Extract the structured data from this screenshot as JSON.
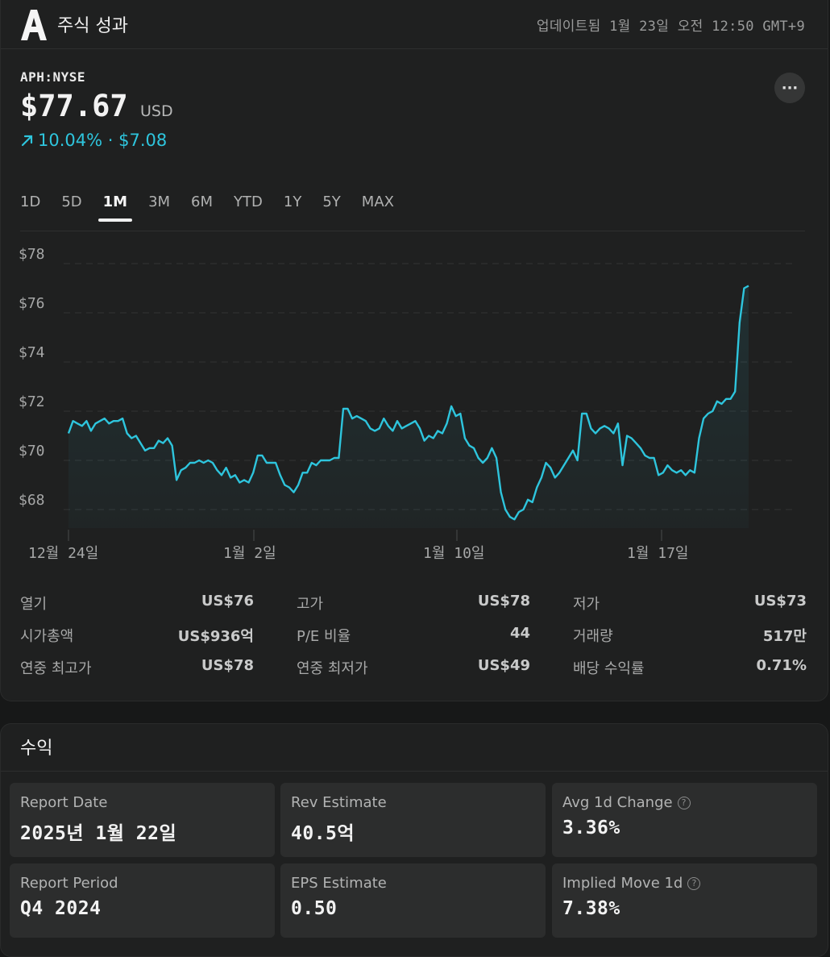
{
  "header": {
    "title": "주식 성과",
    "updated": "업데이트됨 1월 23일 오전 12:50 GMT+9"
  },
  "quote": {
    "ticker": "APH:NYSE",
    "price": "$77.67",
    "currency": "USD",
    "change": "10.04% · $7.08",
    "more": "···"
  },
  "ranges": [
    "1D",
    "5D",
    "1M",
    "3M",
    "6M",
    "YTD",
    "1Y",
    "5Y",
    "MAX"
  ],
  "selected_range": "1M",
  "chart_data": {
    "type": "area",
    "y_ticks": [
      "$78",
      "$76",
      "$74",
      "$72",
      "$70",
      "$68"
    ],
    "ylim": [
      67,
      78.5
    ],
    "x_ticks": [
      "12월 24일",
      "1월 2일",
      "1월 10일",
      "1월 17일"
    ],
    "line_color": "#2ec5dd",
    "grid": "dashed horizontal",
    "values": [
      71.1,
      71.6,
      71.5,
      71.4,
      71.6,
      71.2,
      71.5,
      71.6,
      71.7,
      71.5,
      71.6,
      71.6,
      71.7,
      71.1,
      70.9,
      71.0,
      70.7,
      70.4,
      70.5,
      70.5,
      70.8,
      70.7,
      70.9,
      70.6,
      69.2,
      69.6,
      69.7,
      69.9,
      69.9,
      70.0,
      69.9,
      70.0,
      69.9,
      69.6,
      69.4,
      69.7,
      69.3,
      69.4,
      69.1,
      69.2,
      69.1,
      69.5,
      70.2,
      70.2,
      69.9,
      69.9,
      69.9,
      69.4,
      69.0,
      68.9,
      68.7,
      69.0,
      69.5,
      69.5,
      69.9,
      69.8,
      70.0,
      70.0,
      70.0,
      70.1,
      70.1,
      72.1,
      72.1,
      71.7,
      71.8,
      71.7,
      71.6,
      71.3,
      71.2,
      71.3,
      71.7,
      71.4,
      71.2,
      71.6,
      71.3,
      71.4,
      71.5,
      71.6,
      71.3,
      70.8,
      71.0,
      70.9,
      71.2,
      71.1,
      71.5,
      72.2,
      71.8,
      71.9,
      70.9,
      70.6,
      70.5,
      70.1,
      69.9,
      70.1,
      70.5,
      70.1,
      68.7,
      68.0,
      67.7,
      67.6,
      67.9,
      68.0,
      68.4,
      68.3,
      68.9,
      69.3,
      69.9,
      69.7,
      69.3,
      69.5,
      69.8,
      70.1,
      70.4,
      70.0,
      71.9,
      71.9,
      71.3,
      71.1,
      71.3,
      71.4,
      71.3,
      71.1,
      71.5,
      69.8,
      71.0,
      70.9,
      70.7,
      70.5,
      70.2,
      70.1,
      70.1,
      69.4,
      69.5,
      69.8,
      69.6,
      69.5,
      69.6,
      69.4,
      69.6,
      69.5,
      70.9,
      71.7,
      71.9,
      72.0,
      72.4,
      72.3,
      72.5,
      72.5,
      72.8,
      75.6,
      77.0,
      77.1
    ]
  },
  "stats": [
    {
      "label": "열기",
      "value": "US$76"
    },
    {
      "label": "고가",
      "value": "US$78"
    },
    {
      "label": "저가",
      "value": "US$73"
    },
    {
      "label": "시가총액",
      "value": "US$936억"
    },
    {
      "label": "P/E 비율",
      "value": "44"
    },
    {
      "label": "거래량",
      "value": "517만"
    },
    {
      "label": "연중 최고가",
      "value": "US$78"
    },
    {
      "label": "연중 최저가",
      "value": "US$49"
    },
    {
      "label": "배당 수익률",
      "value": "0.71%"
    }
  ],
  "earnings": {
    "title": "수익",
    "boxes": [
      {
        "label": "Report Date",
        "value": "2025년 1월 22일",
        "help": false
      },
      {
        "label": "Rev Estimate",
        "value": "40.5억",
        "help": false
      },
      {
        "label": "Avg 1d Change",
        "value": "3.36%",
        "help": true
      },
      {
        "label": "Report Period",
        "value": "Q4 2024",
        "help": false
      },
      {
        "label": "EPS Estimate",
        "value": "0.50",
        "help": false
      },
      {
        "label": "Implied Move 1d",
        "value": "7.38%",
        "help": true
      }
    ]
  },
  "icons": [
    "logo-a-icon",
    "trend-up-arrow-icon",
    "more-icon",
    "help-icon"
  ]
}
